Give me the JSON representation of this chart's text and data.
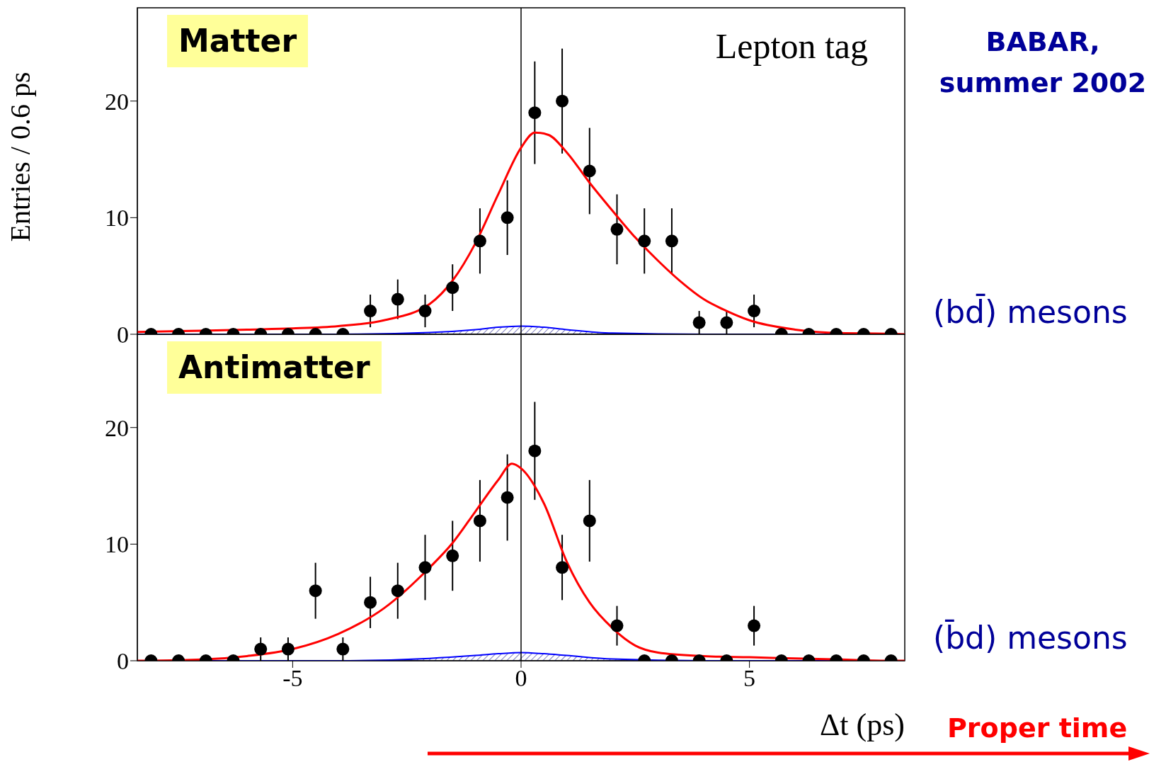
{
  "chart_data": [
    {
      "type": "scatter",
      "ylabel": "Entries / 0.6 ps",
      "xlim": [
        -8.4,
        8.4
      ],
      "xticks": [
        -5,
        0,
        5
      ],
      "ylim": [
        0,
        28
      ],
      "yticks": [
        0,
        10,
        20
      ],
      "tick_labels": "y",
      "annotations": [
        "Matter",
        "Lepton tag",
        "BABAR, summer 2002",
        "(bd̄) mesons"
      ],
      "ref_lines": [
        {
          "axis": "x",
          "value": 0,
          "color": "#000000"
        }
      ],
      "series": [
        {
          "marker": "circle",
          "color": "#000000",
          "x": [
            -8.1,
            -7.5,
            -6.9,
            -6.3,
            -5.7,
            -5.1,
            -4.5,
            -3.9,
            -3.3,
            -2.7,
            -2.1,
            -1.5,
            -0.9,
            -0.3,
            0.3,
            0.9,
            1.5,
            2.1,
            2.7,
            3.3,
            3.9,
            4.5,
            5.1,
            5.7,
            6.3,
            6.9,
            7.5,
            8.1
          ],
          "values": [
            0,
            0,
            0,
            0,
            0,
            0,
            0,
            0,
            2,
            3,
            2,
            4,
            8,
            10,
            19,
            20,
            14,
            9,
            8,
            8,
            1,
            1,
            2,
            0,
            0,
            0,
            0,
            0
          ],
          "errors": [
            null,
            null,
            null,
            null,
            null,
            null,
            null,
            null,
            1.4,
            1.7,
            1.4,
            2,
            2.8,
            3.2,
            4.4,
            4.5,
            3.7,
            3,
            2.8,
            2.8,
            1,
            1,
            1.4,
            null,
            null,
            null,
            null,
            null
          ]
        },
        {
          "type": "line",
          "color": "#ff0000",
          "x": [
            -8.4,
            -7,
            -6,
            -5,
            -4,
            -3,
            -2,
            -1.5,
            -1,
            -0.5,
            0,
            0.3,
            0.6,
            1,
            1.5,
            2,
            2.5,
            3,
            3.5,
            4,
            4.5,
            5,
            6,
            7,
            8,
            8.4
          ],
          "values": [
            0.2,
            0.3,
            0.4,
            0.5,
            0.7,
            1.2,
            2.6,
            4.6,
            7.8,
            12,
            16,
            17.3,
            17.1,
            15.6,
            13,
            10.6,
            8.3,
            6.3,
            4.5,
            3,
            2,
            1.2,
            0.4,
            0.1,
            0.05,
            0
          ]
        },
        {
          "type": "area",
          "color": "#0000ff",
          "x": [
            -8.4,
            -4,
            -2,
            -1,
            -0.5,
            0,
            0.5,
            1,
            2,
            4,
            8.4
          ],
          "values": [
            0,
            0,
            0.15,
            0.4,
            0.6,
            0.7,
            0.6,
            0.4,
            0.1,
            0,
            0
          ]
        }
      ]
    },
    {
      "type": "scatter",
      "xlabel": "Δt (ps)",
      "xlim": [
        -8.4,
        8.4
      ],
      "xticks": [
        -5,
        0,
        5
      ],
      "ylim": [
        0,
        28
      ],
      "yticks": [
        0,
        10,
        20
      ],
      "annotations": [
        "Antimatter",
        "(b̄d) mesons",
        "Proper time"
      ],
      "ref_lines": [
        {
          "axis": "x",
          "value": 0,
          "color": "#000000"
        }
      ],
      "series": [
        {
          "marker": "circle",
          "color": "#000000",
          "x": [
            -8.1,
            -7.5,
            -6.9,
            -6.3,
            -5.7,
            -5.1,
            -4.5,
            -3.9,
            -3.3,
            -2.7,
            -2.1,
            -1.5,
            -0.9,
            -0.3,
            0.3,
            0.9,
            1.5,
            2.1,
            2.7,
            3.3,
            3.9,
            4.5,
            5.1,
            5.7,
            6.3,
            6.9,
            7.5,
            8.1
          ],
          "values": [
            0,
            0,
            0,
            0,
            1,
            1,
            6,
            1,
            5,
            6,
            8,
            9,
            12,
            14,
            18,
            8,
            12,
            3,
            0,
            0,
            0,
            0,
            3,
            0,
            0,
            0,
            0,
            0
          ],
          "errors": [
            null,
            null,
            null,
            null,
            1,
            1,
            2.4,
            1,
            2.2,
            2.4,
            2.8,
            3,
            3.5,
            3.7,
            4.2,
            2.8,
            3.5,
            1.7,
            null,
            null,
            null,
            null,
            1.7,
            null,
            null,
            null,
            null,
            null
          ]
        },
        {
          "type": "line",
          "color": "#ff0000",
          "x": [
            -8.4,
            -7,
            -6,
            -5,
            -4,
            -3,
            -2,
            -1.5,
            -1,
            -0.5,
            -0.2,
            0,
            0.5,
            1,
            1.5,
            2,
            2.5,
            3,
            4,
            5,
            6,
            7,
            8,
            8.4
          ],
          "values": [
            0,
            0.1,
            0.4,
            1,
            2.3,
            4.5,
            8,
            10.1,
            12.8,
            15.5,
            16.9,
            16.5,
            13.5,
            8.5,
            5,
            2.8,
            1.3,
            0.7,
            0.4,
            0.3,
            0.2,
            0.1,
            0,
            0
          ]
        },
        {
          "type": "area",
          "color": "#0000ff",
          "x": [
            -8.4,
            -4,
            -2,
            -1,
            -0.5,
            0,
            0.5,
            1,
            2,
            4,
            8.4
          ],
          "values": [
            0,
            0,
            0.2,
            0.45,
            0.6,
            0.7,
            0.6,
            0.45,
            0.15,
            0,
            0
          ]
        }
      ]
    }
  ]
}
